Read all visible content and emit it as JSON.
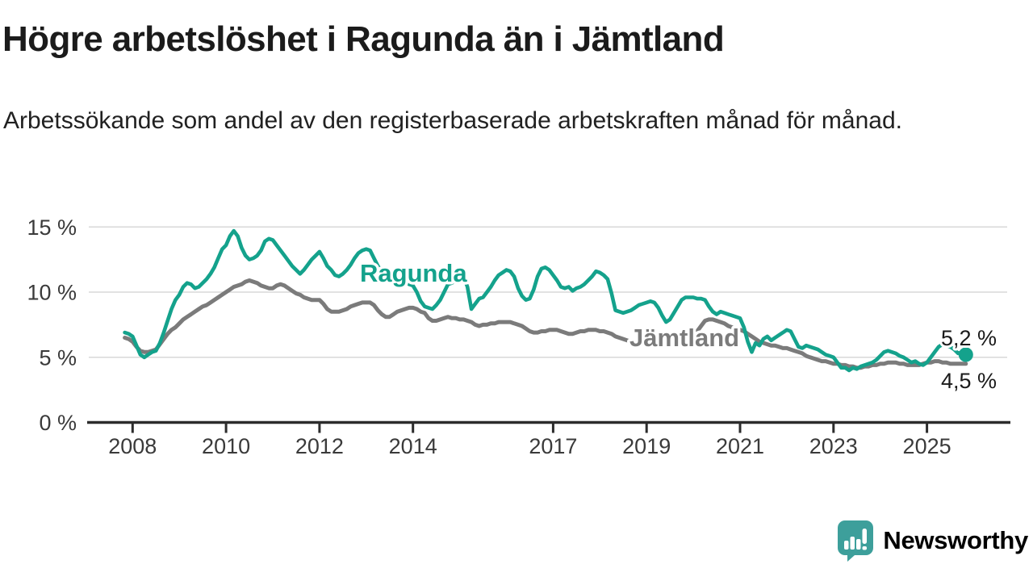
{
  "chart_data": {
    "type": "line",
    "title": "Högre arbetslöshet i Ragunda än i Jämtland",
    "subtitle": "Arbetssökande som andel av den registerbaserade arbetskraften månad för månad.",
    "x_start": 2007.8333,
    "x_step": 0.0833333,
    "x_ticks": [
      2008,
      2010,
      2012,
      2014,
      2017,
      2019,
      2021,
      2023,
      2025
    ],
    "y_ticks": [
      0,
      5,
      10,
      15
    ],
    "y_suffix": " %",
    "ylim": [
      0,
      15.5
    ],
    "xlim": [
      2007.0,
      2026.8
    ],
    "grid": "horizontal",
    "grid_color": "#d8d8d8",
    "axis_color": "#2c2c2c",
    "tick_color": "#3a3a3a",
    "end_label_color": "#1a1a1a",
    "legend_position": "inline-labels",
    "series": [
      {
        "name": "Jämtland",
        "color": "#7b7b7b",
        "stroke_width": 5,
        "end_label": "4,5 %",
        "end_value": 4.5,
        "end_dot": false,
        "values": [
          6.5,
          6.4,
          6.2,
          5.8,
          5.5,
          5.4,
          5.4,
          5.5,
          5.6,
          6.0,
          6.4,
          6.8,
          7.1,
          7.3,
          7.6,
          7.9,
          8.1,
          8.3,
          8.5,
          8.7,
          8.9,
          9.0,
          9.2,
          9.4,
          9.6,
          9.8,
          10.0,
          10.2,
          10.4,
          10.5,
          10.6,
          10.8,
          10.9,
          10.8,
          10.7,
          10.5,
          10.4,
          10.3,
          10.3,
          10.5,
          10.6,
          10.5,
          10.3,
          10.1,
          9.9,
          9.8,
          9.6,
          9.5,
          9.4,
          9.4,
          9.4,
          9.1,
          8.7,
          8.5,
          8.5,
          8.5,
          8.6,
          8.7,
          8.9,
          9.0,
          9.1,
          9.2,
          9.2,
          9.2,
          9.0,
          8.6,
          8.3,
          8.1,
          8.1,
          8.3,
          8.5,
          8.6,
          8.7,
          8.8,
          8.8,
          8.7,
          8.5,
          8.4,
          8.0,
          7.8,
          7.8,
          7.9,
          8.0,
          8.1,
          8.0,
          8.0,
          7.9,
          7.9,
          7.8,
          7.7,
          7.5,
          7.4,
          7.5,
          7.5,
          7.6,
          7.6,
          7.7,
          7.7,
          7.7,
          7.7,
          7.6,
          7.5,
          7.4,
          7.2,
          7.0,
          6.9,
          6.9,
          7.0,
          7.0,
          7.1,
          7.1,
          7.1,
          7.0,
          6.9,
          6.8,
          6.8,
          6.9,
          7.0,
          7.0,
          7.1,
          7.1,
          7.1,
          7.0,
          7.0,
          6.9,
          6.8,
          6.6,
          6.5,
          6.4,
          6.3,
          6.2,
          6.2,
          6.1,
          6.1,
          6.2,
          6.2,
          6.1,
          6.1,
          6.0,
          6.0,
          6.1,
          6.1,
          6.2,
          6.3,
          6.4,
          6.5,
          6.7,
          7.0,
          7.4,
          7.8,
          7.9,
          7.9,
          7.8,
          7.7,
          7.6,
          7.4,
          7.3,
          7.2,
          7.1,
          7.0,
          6.8,
          6.6,
          6.4,
          6.2,
          6.1,
          6.0,
          5.9,
          5.9,
          5.8,
          5.7,
          5.7,
          5.6,
          5.5,
          5.4,
          5.3,
          5.1,
          5.0,
          4.9,
          4.8,
          4.7,
          4.7,
          4.6,
          4.5,
          4.5,
          4.4,
          4.4,
          4.3,
          4.3,
          4.2,
          4.2,
          4.3,
          4.3,
          4.4,
          4.4,
          4.5,
          4.5,
          4.6,
          4.6,
          4.6,
          4.5,
          4.5,
          4.4,
          4.4,
          4.4,
          4.4,
          4.5,
          4.6,
          4.6,
          4.7,
          4.7,
          4.6,
          4.6,
          4.5,
          4.5,
          4.5,
          4.5,
          4.5
        ]
      },
      {
        "name": "Ragunda",
        "color": "#14a28c",
        "stroke_width": 4.6,
        "end_label": "5,2 %",
        "end_value": 5.2,
        "end_dot": true,
        "values": [
          6.9,
          6.8,
          6.6,
          5.9,
          5.2,
          5.0,
          5.2,
          5.4,
          5.5,
          6.1,
          6.9,
          7.8,
          8.7,
          9.4,
          9.8,
          10.4,
          10.7,
          10.6,
          10.3,
          10.4,
          10.7,
          11.0,
          11.4,
          11.9,
          12.6,
          13.3,
          13.6,
          14.3,
          14.7,
          14.3,
          13.4,
          12.8,
          12.5,
          12.6,
          12.8,
          13.2,
          13.9,
          14.1,
          14.0,
          13.6,
          13.2,
          12.8,
          12.4,
          12.0,
          11.7,
          11.4,
          11.7,
          12.1,
          12.5,
          12.8,
          13.1,
          12.6,
          12.0,
          11.7,
          11.3,
          11.2,
          11.4,
          11.7,
          12.1,
          12.6,
          13.0,
          13.2,
          13.3,
          13.2,
          12.6,
          12.0,
          11.6,
          11.2,
          11.0,
          10.8,
          10.9,
          10.7,
          10.8,
          10.6,
          10.5,
          10.0,
          9.3,
          8.9,
          8.8,
          8.7,
          9.0,
          9.4,
          10.0,
          10.6,
          10.7,
          10.9,
          11.1,
          11.2,
          10.4,
          8.7,
          9.1,
          9.5,
          9.6,
          10.0,
          10.4,
          10.9,
          11.3,
          11.5,
          11.7,
          11.6,
          11.2,
          10.3,
          9.7,
          9.4,
          9.5,
          10.2,
          11.2,
          11.8,
          11.9,
          11.7,
          11.3,
          10.9,
          10.4,
          10.3,
          10.4,
          10.1,
          10.3,
          10.4,
          10.6,
          10.9,
          11.2,
          11.6,
          11.5,
          11.3,
          11.0,
          9.9,
          8.6,
          8.5,
          8.4,
          8.5,
          8.6,
          8.8,
          9.0,
          9.1,
          9.2,
          9.3,
          9.2,
          8.8,
          8.2,
          7.7,
          7.9,
          8.4,
          8.9,
          9.4,
          9.6,
          9.6,
          9.6,
          9.5,
          9.5,
          9.4,
          8.9,
          8.5,
          8.3,
          8.5,
          8.4,
          8.3,
          8.2,
          8.1,
          8.0,
          7.3,
          6.2,
          5.4,
          6.1,
          5.9,
          6.4,
          6.6,
          6.3,
          6.5,
          6.7,
          6.9,
          7.1,
          7.0,
          6.4,
          5.8,
          5.7,
          5.9,
          5.8,
          5.7,
          5.6,
          5.4,
          5.2,
          5.1,
          5.0,
          4.6,
          4.2,
          4.2,
          4.0,
          4.2,
          4.1,
          4.3,
          4.4,
          4.5,
          4.6,
          4.8,
          5.1,
          5.4,
          5.5,
          5.4,
          5.3,
          5.1,
          5.0,
          4.8,
          4.6,
          4.7,
          4.5,
          4.4,
          4.6,
          5.0,
          5.4,
          5.8,
          6.0,
          5.9,
          5.8,
          5.6,
          5.3,
          5.4,
          5.2
        ]
      }
    ]
  },
  "branding": {
    "name": "Newsworthy",
    "color": "#3d9f9b",
    "icon": "bar-chart-speech-bubble-icon"
  }
}
